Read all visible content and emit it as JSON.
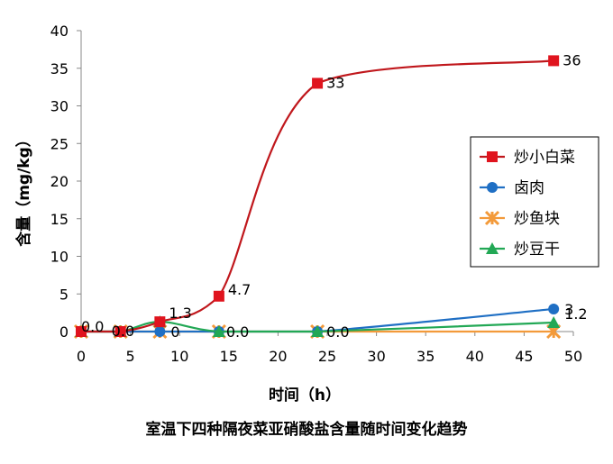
{
  "chart_data": {
    "type": "line",
    "title": "室温下四种隔夜菜亚硝酸盐含量随时间变化趋势",
    "xlabel": "时间（h）",
    "ylabel": "含量（mg/kg）",
    "xlim": [
      0,
      50
    ],
    "ylim": [
      0,
      40
    ],
    "x_ticks": [
      0,
      5,
      10,
      15,
      20,
      25,
      30,
      35,
      40,
      45,
      50
    ],
    "y_ticks": [
      0,
      5,
      10,
      15,
      20,
      25,
      30,
      35,
      40
    ],
    "grid": false,
    "legend_position": "right",
    "series": [
      {
        "name": "炒小白菜",
        "color": "#e0141e",
        "line_color": "#c0171c",
        "marker": "square",
        "x": [
          0,
          4,
          8,
          14,
          24,
          48
        ],
        "y": [
          0,
          0,
          1.3,
          4.7,
          33,
          36
        ],
        "labels": [
          "0.0",
          "0.0",
          "",
          "4.7",
          "33",
          "36"
        ]
      },
      {
        "name": "卤肉",
        "color": "#1f6fc4",
        "line_color": "#1f6fc4",
        "marker": "circle",
        "x": [
          0,
          4,
          8,
          14,
          24,
          48
        ],
        "y": [
          0,
          0,
          0,
          0,
          0,
          3
        ],
        "labels": [
          "",
          "",
          "",
          "",
          "",
          "3"
        ]
      },
      {
        "name": "炒鱼块",
        "color": "#f39a3a",
        "line_color": "#f39a3a",
        "marker": "asterisk",
        "x": [
          0,
          4,
          8,
          14,
          24,
          48
        ],
        "y": [
          0,
          0,
          0,
          0,
          0,
          0
        ],
        "labels": [
          "",
          "",
          "0",
          "0.0",
          "0.0",
          ""
        ]
      },
      {
        "name": "炒豆干",
        "color": "#22a855",
        "line_color": "#22a855",
        "marker": "triangle",
        "x": [
          0,
          4,
          8,
          14,
          24,
          48
        ],
        "y": [
          0,
          0,
          1.3,
          0,
          0,
          1.2
        ],
        "labels": [
          "",
          "",
          "1.3",
          "",
          "",
          "1.2"
        ]
      }
    ]
  }
}
